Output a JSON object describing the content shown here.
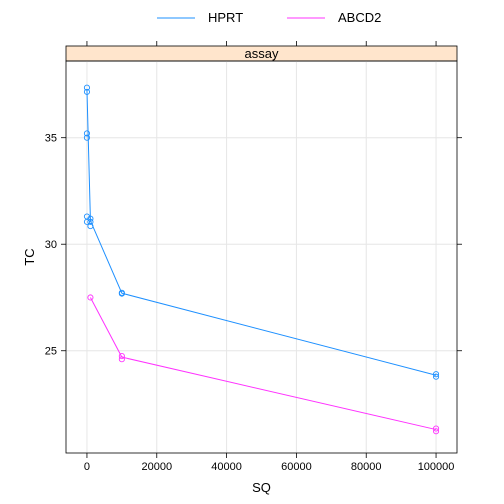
{
  "chart_data": {
    "type": "line",
    "panel_title": "assay",
    "xlabel": "SQ",
    "ylabel": "TC",
    "xlim": [
      -6000,
      106000
    ],
    "ylim": [
      20.2,
      38.6
    ],
    "x_ticks": [
      0,
      20000,
      40000,
      60000,
      80000,
      100000
    ],
    "y_ticks": [
      25,
      30,
      35
    ],
    "grid": true,
    "legend_position": "top",
    "series": [
      {
        "name": "HPRT",
        "color": "#1e90ff",
        "line": [
          [
            0,
            37.25
          ],
          [
            1000,
            31.1
          ],
          [
            10000,
            27.7
          ],
          [
            100000,
            23.85
          ]
        ],
        "points": [
          [
            0,
            37.35
          ],
          [
            0,
            37.15
          ],
          [
            0,
            35.2
          ],
          [
            0,
            35.0
          ],
          [
            0,
            31.3
          ],
          [
            0,
            31.05
          ],
          [
            1000,
            31.2
          ],
          [
            1000,
            31.05
          ],
          [
            1000,
            30.85
          ],
          [
            10000,
            27.72
          ],
          [
            10000,
            27.68
          ],
          [
            100000,
            23.9
          ],
          [
            100000,
            23.78
          ]
        ]
      },
      {
        "name": "ABCD2",
        "color": "#ff33ff",
        "line": [
          [
            1000,
            27.5
          ],
          [
            10000,
            24.7
          ],
          [
            100000,
            21.3
          ]
        ],
        "points": [
          [
            1000,
            27.5
          ],
          [
            10000,
            24.75
          ],
          [
            10000,
            24.6
          ],
          [
            100000,
            21.35
          ],
          [
            100000,
            21.22
          ]
        ]
      }
    ]
  }
}
